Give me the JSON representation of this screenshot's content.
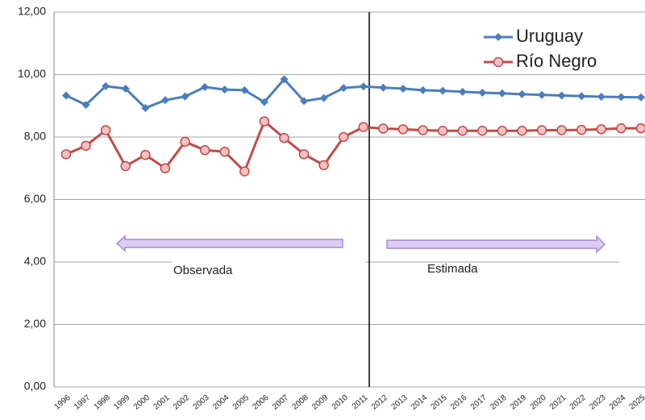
{
  "chart_data": {
    "type": "line",
    "categories": [
      "1996",
      "1997",
      "1998",
      "1999",
      "2000",
      "2001",
      "2002",
      "2003",
      "2004",
      "2005",
      "2006",
      "2007",
      "2008",
      "2009",
      "2010",
      "2011",
      "2012",
      "2013",
      "2014",
      "2015",
      "2016",
      "2017",
      "2018",
      "2019",
      "2020",
      "2021",
      "2022",
      "2023",
      "2024",
      "2025"
    ],
    "series": [
      {
        "name": "Uruguay",
        "color": "#4a7ebb",
        "marker": "diamond",
        "values": [
          9.33,
          9.03,
          9.63,
          9.55,
          8.93,
          9.18,
          9.3,
          9.6,
          9.52,
          9.5,
          9.12,
          9.85,
          9.15,
          9.25,
          9.57,
          9.62,
          9.58,
          9.55,
          9.5,
          9.48,
          9.45,
          9.42,
          9.4,
          9.37,
          9.35,
          9.33,
          9.31,
          9.29,
          9.28,
          9.27
        ]
      },
      {
        "name": "Río Negro",
        "color": "#be4b48",
        "marker": "circle",
        "values": [
          7.45,
          7.72,
          8.22,
          7.07,
          7.43,
          7.0,
          7.85,
          7.58,
          7.53,
          6.9,
          8.5,
          7.97,
          7.45,
          7.1,
          8.0,
          8.32,
          8.27,
          8.25,
          8.22,
          8.2,
          8.2,
          8.2,
          8.2,
          8.2,
          8.22,
          8.22,
          8.23,
          8.25,
          8.28,
          8.28
        ]
      }
    ],
    "ylim": [
      0,
      12
    ],
    "yticks": [
      {
        "value": 0,
        "label": "0,00"
      },
      {
        "value": 2,
        "label": "2,00"
      },
      {
        "value": 4,
        "label": "4,00"
      },
      {
        "value": 6,
        "label": "6,00"
      },
      {
        "value": 8,
        "label": "8,00"
      },
      {
        "value": 10,
        "label": "10,00"
      },
      {
        "value": 12,
        "label": "12,00"
      }
    ],
    "grid": true,
    "annotations": [
      "Observada",
      "Estimada"
    ]
  }
}
